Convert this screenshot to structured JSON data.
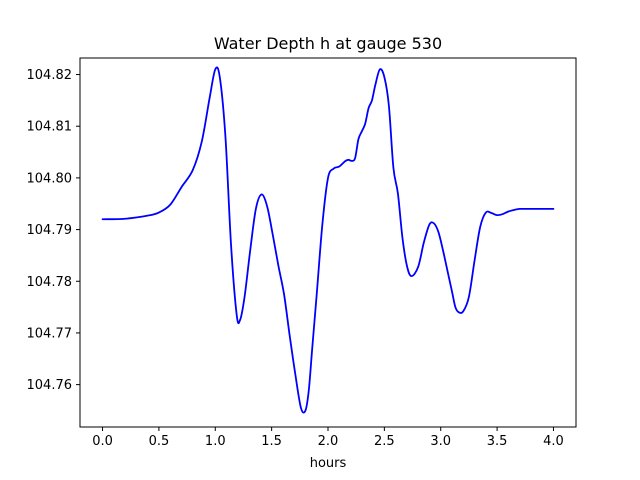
{
  "chart_data": {
    "type": "line",
    "title": "Water Depth h at gauge 530",
    "xlabel": "hours",
    "ylabel": "",
    "xlim": [
      -0.2,
      4.2
    ],
    "ylim": [
      104.7518,
      104.8232
    ],
    "xticks": [
      0.0,
      0.5,
      1.0,
      1.5,
      2.0,
      2.5,
      3.0,
      3.5,
      4.0
    ],
    "xtick_labels": [
      "0.0",
      "0.5",
      "1.0",
      "1.5",
      "2.0",
      "2.5",
      "3.0",
      "3.5",
      "4.0"
    ],
    "yticks": [
      104.76,
      104.77,
      104.78,
      104.79,
      104.8,
      104.81,
      104.82
    ],
    "ytick_labels": [
      "104.76",
      "104.77",
      "104.78",
      "104.79",
      "104.80",
      "104.81",
      "104.82"
    ],
    "grid": false,
    "series": [
      {
        "color": "#0000ff",
        "x": [
          0.0,
          0.2,
          0.4,
          0.5,
          0.6,
          0.7,
          0.8,
          0.88,
          0.95,
          1.0,
          1.04,
          1.09,
          1.14,
          1.19,
          1.22,
          1.26,
          1.31,
          1.36,
          1.41,
          1.46,
          1.51,
          1.56,
          1.61,
          1.66,
          1.71,
          1.76,
          1.8,
          1.83,
          1.86,
          1.9,
          1.95,
          2.0,
          2.05,
          2.1,
          2.15,
          2.18,
          2.21,
          2.24,
          2.27,
          2.3,
          2.33,
          2.36,
          2.39,
          2.42,
          2.46,
          2.5,
          2.54,
          2.58,
          2.62,
          2.66,
          2.7,
          2.74,
          2.8,
          2.85,
          2.9,
          2.94,
          2.98,
          3.02,
          3.06,
          3.1,
          3.13,
          3.16,
          3.2,
          3.25,
          3.3,
          3.35,
          3.4,
          3.45,
          3.5,
          3.55,
          3.6,
          3.65,
          3.7,
          3.75,
          3.8,
          3.85,
          3.9,
          3.95,
          4.0
        ],
        "y": [
          104.792,
          104.7921,
          104.7927,
          104.7933,
          104.7948,
          104.7982,
          104.8015,
          104.807,
          104.8155,
          104.821,
          104.8195,
          104.808,
          104.787,
          104.7735,
          104.7725,
          104.777,
          104.786,
          104.794,
          104.7968,
          104.7945,
          104.789,
          104.783,
          104.7775,
          104.7695,
          104.762,
          104.7555,
          104.755,
          104.759,
          104.767,
          104.7775,
          104.791,
          104.8,
          104.8018,
          104.8022,
          104.8032,
          104.8035,
          104.8033,
          104.8038,
          104.8075,
          104.809,
          104.8105,
          104.8135,
          104.815,
          104.818,
          104.821,
          104.8195,
          104.814,
          104.802,
          104.797,
          104.7885,
          104.783,
          104.781,
          104.7828,
          104.7875,
          104.791,
          104.7912,
          104.7895,
          104.786,
          104.782,
          104.778,
          104.775,
          104.774,
          104.7742,
          104.777,
          104.784,
          104.7905,
          104.7933,
          104.7932,
          104.7928,
          104.793,
          104.7935,
          104.7938,
          104.794,
          104.794,
          104.794,
          104.794,
          104.794,
          104.794,
          104.794
        ]
      }
    ]
  }
}
